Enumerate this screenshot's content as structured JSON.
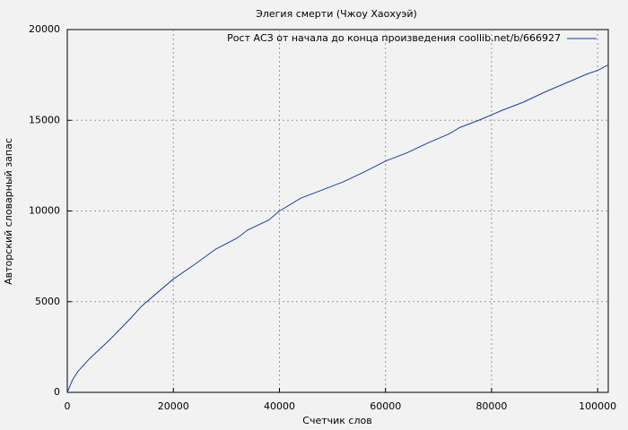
{
  "chart_data": {
    "type": "line",
    "title": "Элегия смерти (Чжоу Хаохуэй)",
    "x_label": "Счетчик слов",
    "y_label": "Авторский словарный запас",
    "x": [
      0,
      1000,
      2000,
      4000,
      6000,
      8000,
      10000,
      12000,
      14000,
      16000,
      18000,
      20000,
      24000,
      28000,
      32000,
      34000,
      38000,
      40000,
      42000,
      44000,
      48000,
      52000,
      56000,
      60000,
      64000,
      68000,
      72000,
      74000,
      78000,
      82000,
      86000,
      90000,
      94000,
      98000,
      100000,
      102000
    ],
    "series": [
      {
        "name": "Рост АСЗ от начала до конца произведения coollib.net/b/666927",
        "color": "#1a3fa0",
        "values": [
          0,
          700,
          1150,
          1800,
          2350,
          2900,
          3500,
          4100,
          4750,
          5250,
          5750,
          6250,
          7050,
          7900,
          8500,
          8950,
          9500,
          10000,
          10350,
          10700,
          11150,
          11600,
          12150,
          12750,
          13200,
          13750,
          14250,
          14600,
          15050,
          15550,
          16000,
          16550,
          17050,
          17550,
          17750,
          18050
        ]
      }
    ],
    "xlim": [
      0,
      102000
    ],
    "ylim": [
      0,
      20000
    ],
    "xticks": [
      0,
      20000,
      40000,
      60000,
      80000,
      100000
    ],
    "yticks": [
      0,
      5000,
      10000,
      15000,
      20000
    ],
    "grid": true,
    "legend": "top-right"
  }
}
